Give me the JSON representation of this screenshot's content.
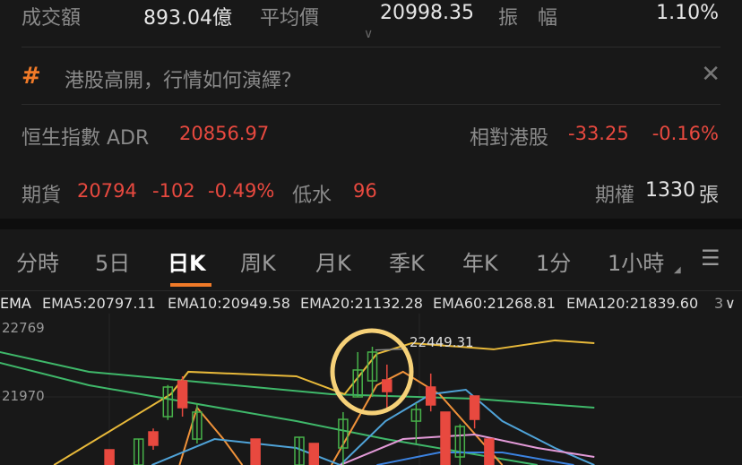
{
  "stats": {
    "turnover_label": "成交額",
    "turnover": "893.04億",
    "avg_label": "平均價",
    "avg": "20998.35",
    "amp_label": "振　幅",
    "amp": "1.10%"
  },
  "banner": {
    "icon": "hash-icon",
    "text": "港股高開，行情如何演繹？"
  },
  "adr": {
    "label": "恒生指數 ADR",
    "value": "20856.97",
    "rel_label": "相對港股",
    "rel_change": "-33.25",
    "rel_pct": "-0.16%"
  },
  "futures": {
    "label": "期貨",
    "value": "20794",
    "change": "-102",
    "pct": "-0.49%",
    "disc_label": "低水",
    "disc": "96",
    "options_label": "期權",
    "options_value": "1330",
    "options_unit": "張"
  },
  "tabs": [
    {
      "label": "分時"
    },
    {
      "label": "5日"
    },
    {
      "label": "日K",
      "selected": true
    },
    {
      "label": "周K"
    },
    {
      "label": "月K"
    },
    {
      "label": "季K"
    },
    {
      "label": "年K"
    },
    {
      "label": "1分"
    },
    {
      "label": "1小時"
    }
  ],
  "accent": "#f07a28",
  "ema_legend": {
    "title": "EMA",
    "items": [
      {
        "text": "EMA5:20797.11",
        "color": "#f0923a"
      },
      {
        "text": "EMA10:20949.58",
        "color": "#4fa3d8"
      },
      {
        "text": "EMA20:21132.28",
        "color": "#d47ad6"
      },
      {
        "text": "EMA60:21268.81",
        "color": "#3b82e0"
      },
      {
        "text": "EMA120:21839.60",
        "color": "#3fb86a"
      }
    ],
    "more": "3"
  },
  "chart_data": {
    "type": "candlestick",
    "y_labels": [
      "22769",
      "21970"
    ],
    "y_ticks": [
      22769,
      21970
    ],
    "annotation": {
      "text": "22449.31",
      "value": 22449.31
    },
    "up_color": "#47b24a",
    "down_color": "#e8493f",
    "candles": [
      {
        "i": 7,
        "o": 21350,
        "c": 21171,
        "h": 21350,
        "l": 21171
      },
      {
        "i": 9,
        "o": 21171,
        "c": 21476,
        "h": 21476,
        "l": 21171
      },
      {
        "i": 10,
        "o": 21560,
        "c": 21403,
        "h": 21600,
        "l": 21350
      },
      {
        "i": 11,
        "o": 21739,
        "c": 22086,
        "h": 22110,
        "l": 21700
      },
      {
        "i": 12,
        "o": 22159,
        "c": 21844,
        "h": 22212,
        "l": 21739
      },
      {
        "i": 13,
        "o": 21476,
        "c": 21792,
        "h": 21897,
        "l": 21424
      },
      {
        "i": 17,
        "o": 21476,
        "c": 21171,
        "h": 21476,
        "l": 21171
      },
      {
        "i": 20,
        "o": 21171,
        "c": 21497,
        "h": 21497,
        "l": 21171
      },
      {
        "i": 21,
        "o": 21424,
        "c": 21171,
        "h": 21424,
        "l": 21171
      },
      {
        "i": 23,
        "o": 21371,
        "c": 21707,
        "h": 21792,
        "l": 21171
      },
      {
        "i": 24,
        "o": 21970,
        "c": 22286,
        "h": 22496,
        "l": 21970
      },
      {
        "i": 25,
        "o": 22159,
        "c": 22496,
        "h": 22559,
        "l": 21970
      },
      {
        "i": 26,
        "o": 22170,
        "c": 22033,
        "h": 22349,
        "l": 21844
      },
      {
        "i": 28,
        "o": 21686,
        "c": 21823,
        "h": 21897,
        "l": 21424
      },
      {
        "i": 29,
        "o": 22086,
        "c": 21876,
        "h": 22244,
        "l": 21800
      },
      {
        "i": 30,
        "o": 21792,
        "c": 21171,
        "h": 21792,
        "l": 21171
      },
      {
        "i": 31,
        "o": 21266,
        "c": 21623,
        "h": 21650,
        "l": 21171
      },
      {
        "i": 32,
        "o": 21981,
        "c": 21707,
        "h": 21981,
        "l": 21600
      },
      {
        "i": 33,
        "o": 21476,
        "c": 21171,
        "h": 21476,
        "l": 21171
      }
    ],
    "lines": [
      {
        "color": "#3fb86a",
        "points": [
          [
            -0.5,
            22496
          ],
          [
            5.6,
            22265
          ],
          [
            22.2,
            22002
          ],
          [
            32,
            21949
          ],
          [
            40.2,
            21844
          ]
        ]
      },
      {
        "color": "#3fb86a",
        "points": [
          [
            -0.5,
            22370
          ],
          [
            5.6,
            22107
          ],
          [
            19.8,
            21686
          ],
          [
            25.9,
            21476
          ],
          [
            36.3,
            21171
          ]
        ]
      },
      {
        "color": "#e8b93a",
        "points": [
          [
            3.2,
            21171
          ],
          [
            11.2,
            22002
          ],
          [
            12.4,
            22265
          ],
          [
            19.8,
            22212
          ],
          [
            23.1,
            22002
          ],
          [
            25.3,
            22475
          ],
          [
            27.7,
            22601
          ],
          [
            33.3,
            22528
          ],
          [
            37.5,
            22633
          ],
          [
            40.2,
            22601
          ]
        ]
      },
      {
        "color": "#f0923a",
        "points": [
          [
            11.8,
            21171
          ],
          [
            13,
            21844
          ],
          [
            14.8,
            21476
          ],
          [
            16.1,
            21171
          ]
        ]
      },
      {
        "color": "#f0923a",
        "points": [
          [
            22.2,
            21171
          ],
          [
            25.3,
            22107
          ],
          [
            27.1,
            22265
          ],
          [
            29.6,
            22002
          ],
          [
            33.9,
            21171
          ]
        ]
      },
      {
        "color": "#4fa3d8",
        "points": [
          [
            9.9,
            21171
          ],
          [
            14.2,
            21476
          ],
          [
            19.8,
            21371
          ],
          [
            22.8,
            21171
          ]
        ]
      },
      {
        "color": "#4fa3d8",
        "points": [
          [
            22.8,
            21171
          ],
          [
            25.9,
            21686
          ],
          [
            29,
            22002
          ],
          [
            31.4,
            22054
          ],
          [
            33.9,
            21686
          ],
          [
            37.5,
            21371
          ],
          [
            40.2,
            21171
          ]
        ]
      },
      {
        "color": "#e39ad8",
        "points": [
          [
            22.8,
            21171
          ],
          [
            27.1,
            21476
          ],
          [
            32,
            21529
          ],
          [
            36.3,
            21371
          ],
          [
            40.2,
            21266
          ]
        ]
      },
      {
        "color": "#3b82e0",
        "points": [
          [
            25.3,
            21171
          ],
          [
            29.6,
            21319
          ],
          [
            33.9,
            21319
          ],
          [
            38.8,
            21171
          ]
        ]
      }
    ]
  }
}
